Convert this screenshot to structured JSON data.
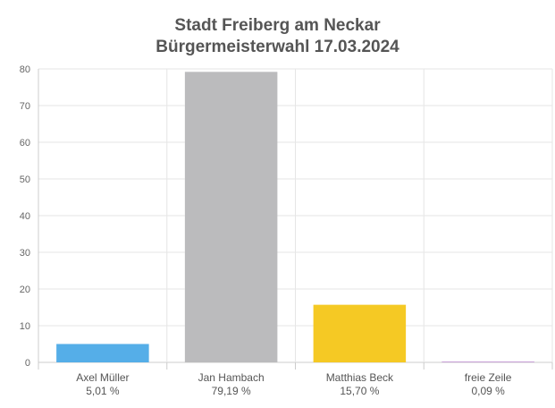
{
  "chart_data": {
    "type": "bar",
    "title": "Stadt Freiberg am Neckar",
    "subtitle": "Bürgermeisterwahl 17.03.2024",
    "categories": [
      "Axel Müller",
      "Jan Hambach",
      "Matthias Beck",
      "freie Zeile"
    ],
    "category_values_label": [
      "5,01 %",
      "79,19 %",
      "15,70 %",
      "0,09 %"
    ],
    "values": [
      5.01,
      79.19,
      15.7,
      0.09
    ],
    "colors": [
      "#55aee8",
      "#bbbbbd",
      "#f5c924",
      "#c9a0d8"
    ],
    "ylim": [
      0,
      80
    ],
    "yticks": [
      0,
      10,
      20,
      30,
      40,
      50,
      60,
      70,
      80
    ],
    "grid": true,
    "xlabel": "",
    "ylabel": ""
  }
}
